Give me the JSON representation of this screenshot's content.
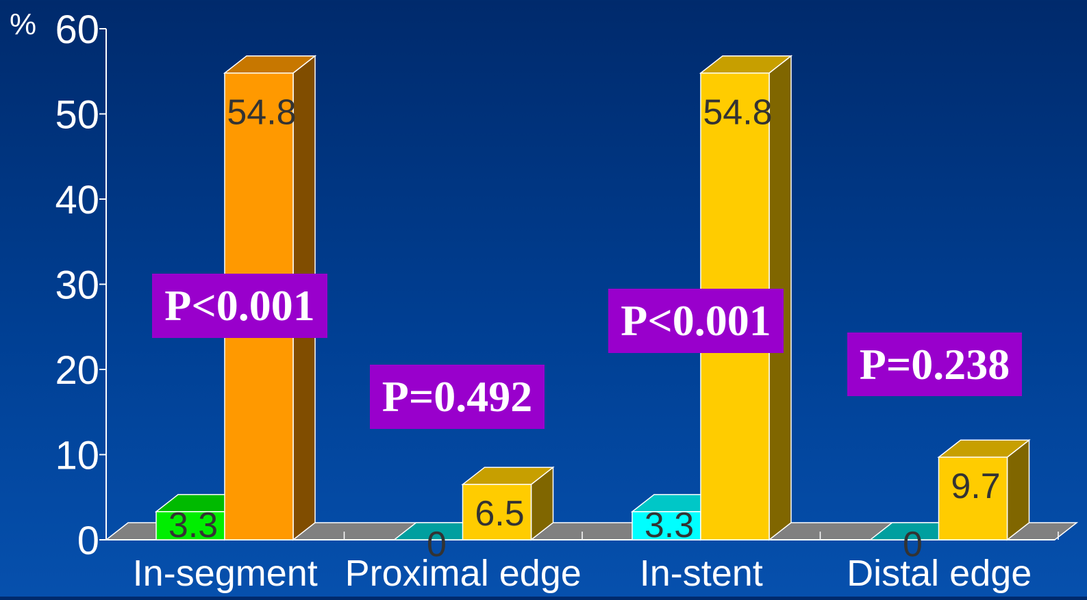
{
  "chart_data": {
    "type": "bar",
    "y_unit_label": "%",
    "ylim": [
      0,
      60
    ],
    "yticks": [
      0,
      10,
      20,
      30,
      40,
      50,
      60
    ],
    "categories": [
      "In-segment",
      "Proximal edge",
      "In-stent",
      "Distal edge"
    ],
    "bars": [
      {
        "category": "In-segment",
        "values": [
          3.3,
          54.8
        ],
        "colors": [
          "#00ee00",
          "#ff9900"
        ],
        "labels": [
          "3.3",
          "54.8"
        ]
      },
      {
        "category": "Proximal edge",
        "values": [
          0,
          6.5
        ],
        "colors": [
          "#00cccc",
          "#ffcc00"
        ],
        "labels": [
          "0",
          "6.5"
        ]
      },
      {
        "category": "In-stent",
        "values": [
          3.3,
          54.8
        ],
        "colors": [
          "#00ffff",
          "#ffcc00"
        ],
        "labels": [
          "3.3",
          "54.8"
        ]
      },
      {
        "category": "Distal edge",
        "values": [
          0,
          9.7
        ],
        "colors": [
          "#00cccc",
          "#ffcc00"
        ],
        "labels": [
          "0",
          "9.7"
        ]
      }
    ],
    "annotations": [
      "P<0.001",
      "P=0.492",
      "P<0.001",
      "P=0.238"
    ],
    "grid": false,
    "legend": "none",
    "floor_color": "#808080"
  }
}
